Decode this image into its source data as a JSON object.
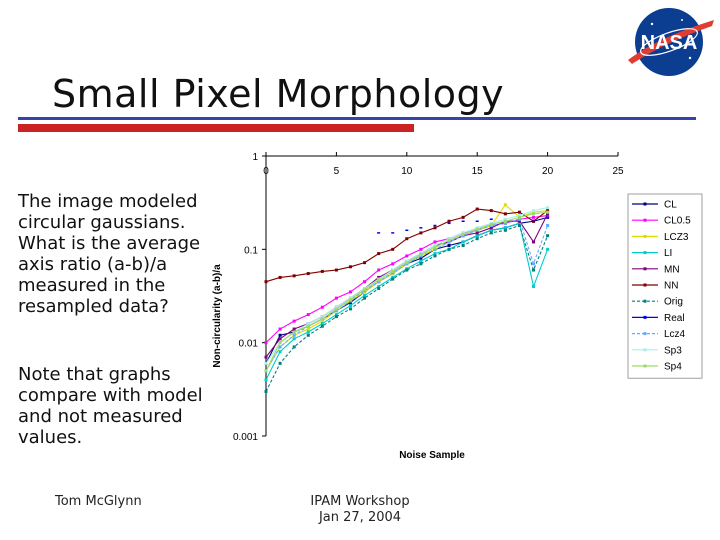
{
  "slide": {
    "title": "Small Pixel Morphology",
    "text_block_1": "The image modeled circular gaussians. What is the average axis ratio (a-b)/a measured in the resampled data?",
    "text_block_2": "Note that graphs compare with model and not measured values.",
    "footer_left": "Tom McGlynn",
    "footer_center_line1": "IPAM Workshop",
    "footer_center_line2": "Jan 27, 2004",
    "logo_text": "NASA"
  },
  "colors": {
    "title_rule": "#3344aa",
    "accent_rule": "#cc2222",
    "logo_blue": "#0b3d91",
    "logo_red": "#e03c31"
  },
  "chart_data": {
    "type": "line",
    "xlabel": "Noise Sample",
    "ylabel": "Non-circularity (a-b)/a",
    "xlim": [
      0,
      25
    ],
    "ylim": [
      0.001,
      1
    ],
    "y_scale": "log",
    "x_ticks": [
      "0",
      "5",
      "10",
      "15",
      "20",
      "25"
    ],
    "y_ticks": [
      "1",
      "0.1",
      "0.01",
      "0.001"
    ],
    "x_axis_position": "top",
    "legend_position": "right",
    "grid": false,
    "series": [
      {
        "name": "CL",
        "color": "#000080",
        "values": [
          0.006,
          0.012,
          0.013,
          0.015,
          0.018,
          0.022,
          0.027,
          0.035,
          0.045,
          0.055,
          0.07,
          0.08,
          0.1,
          0.11,
          0.12,
          0.14,
          0.16,
          0.17,
          0.19,
          0.2,
          0.22
        ]
      },
      {
        "name": "CL0.5",
        "color": "#ff00ff",
        "values": [
          0.01,
          0.014,
          0.017,
          0.02,
          0.024,
          0.03,
          0.035,
          0.045,
          0.06,
          0.07,
          0.085,
          0.1,
          0.12,
          0.13,
          0.15,
          0.16,
          0.18,
          0.19,
          0.21,
          0.22,
          0.23
        ]
      },
      {
        "name": "LCZ3",
        "color": "#dddd00",
        "values": [
          0.005,
          0.009,
          0.012,
          0.014,
          0.017,
          0.022,
          0.028,
          0.035,
          0.045,
          0.055,
          0.07,
          0.085,
          0.1,
          0.12,
          0.14,
          0.16,
          0.18,
          0.3,
          0.22,
          0.25,
          0.26
        ]
      },
      {
        "name": "LI",
        "color": "#00cccc",
        "values": [
          0.004,
          0.008,
          0.011,
          0.013,
          0.016,
          0.02,
          0.025,
          0.032,
          0.04,
          0.05,
          0.062,
          0.075,
          0.09,
          0.1,
          0.12,
          0.14,
          0.16,
          0.17,
          0.19,
          0.04,
          0.1
        ]
      },
      {
        "name": "MN",
        "color": "#800080",
        "values": [
          0.007,
          0.011,
          0.014,
          0.016,
          0.019,
          0.024,
          0.03,
          0.038,
          0.05,
          0.06,
          0.075,
          0.09,
          0.11,
          0.12,
          0.14,
          0.15,
          0.17,
          0.2,
          0.2,
          0.12,
          0.24
        ]
      },
      {
        "name": "NN",
        "color": "#800000",
        "values": [
          0.045,
          0.05,
          0.052,
          0.055,
          0.058,
          0.06,
          0.065,
          0.072,
          0.09,
          0.1,
          0.13,
          0.15,
          0.17,
          0.2,
          0.22,
          0.27,
          0.26,
          0.24,
          0.25,
          0.2,
          0.26
        ]
      },
      {
        "name": "Orig",
        "color": "#008080",
        "values": [
          0.003,
          0.006,
          0.009,
          0.012,
          0.015,
          0.019,
          0.023,
          0.03,
          0.038,
          0.048,
          0.06,
          0.07,
          0.085,
          0.1,
          0.11,
          0.13,
          0.15,
          0.16,
          0.18,
          0.06,
          0.14
        ]
      },
      {
        "name": "Real",
        "color": "#0000ff",
        "values": [
          null,
          null,
          null,
          null,
          null,
          null,
          null,
          null,
          0.15,
          0.15,
          0.16,
          0.17,
          0.18,
          0.19,
          0.2,
          0.2,
          0.21,
          0.21,
          0.22,
          0.2,
          0.22
        ]
      },
      {
        "name": "Lcz4",
        "color": "#66aaff",
        "values": [
          0.005,
          0.009,
          0.012,
          0.015,
          0.018,
          0.022,
          0.028,
          0.036,
          0.045,
          0.056,
          0.07,
          0.085,
          0.1,
          0.12,
          0.14,
          0.16,
          0.18,
          0.19,
          0.21,
          0.07,
          0.18
        ]
      },
      {
        "name": "Sp3",
        "color": "#aaeeee",
        "values": [
          0.006,
          0.01,
          0.013,
          0.016,
          0.019,
          0.024,
          0.03,
          0.038,
          0.048,
          0.06,
          0.075,
          0.09,
          0.11,
          0.13,
          0.15,
          0.17,
          0.19,
          0.21,
          0.23,
          0.26,
          0.28
        ]
      },
      {
        "name": "Sp4",
        "color": "#99dd66",
        "values": [
          0.005,
          0.01,
          0.013,
          0.015,
          0.018,
          0.023,
          0.029,
          0.037,
          0.047,
          0.058,
          0.072,
          0.088,
          0.105,
          0.125,
          0.145,
          0.165,
          0.185,
          0.2,
          0.22,
          0.24,
          0.25
        ]
      }
    ]
  }
}
